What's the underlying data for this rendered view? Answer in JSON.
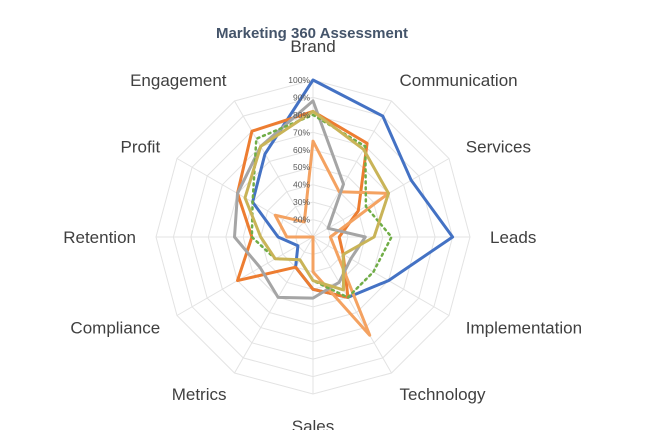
{
  "chart_data": {
    "type": "radar",
    "title": "Marketing 360 Assessment",
    "categories": [
      "Brand",
      "Communication",
      "Services",
      "Leads",
      "Implementation",
      "Technology",
      "Sales",
      "Metrics",
      "Compliance",
      "Retention",
      "Profit",
      "Engagement"
    ],
    "tick_labels": [
      "20%",
      "30%",
      "40%",
      "50%",
      "60%",
      "70%",
      "80%",
      "90%",
      "100%"
    ],
    "rlim": [
      10,
      100
    ],
    "grid": true,
    "legend": "none",
    "series": [
      {
        "values": [
          100,
          90,
          75,
          90,
          60,
          50,
          40,
          30,
          20,
          30,
          50,
          65
        ],
        "color": "#4472c4",
        "style": "solid"
      },
      {
        "values": [
          82,
          72,
          40,
          25,
          30,
          50,
          40,
          30,
          60,
          45,
          60,
          80
        ],
        "color": "#ed7d31",
        "style": "solid"
      },
      {
        "values": [
          65,
          40,
          60,
          20,
          25,
          75,
          30,
          10,
          10,
          25,
          35,
          20
        ],
        "color": "#f4a261",
        "style": "solid"
      },
      {
        "values": [
          88,
          45,
          20,
          40,
          35,
          40,
          45,
          50,
          45,
          55,
          60,
          70
        ],
        "color": "#a5a5a5",
        "style": "solid"
      },
      {
        "values": [
          80,
          70,
          45,
          55,
          50,
          50,
          35,
          25,
          35,
          45,
          50,
          75
        ],
        "color": "#70ad47",
        "style": "dotted"
      },
      {
        "values": [
          82,
          68,
          60,
          45,
          30,
          45,
          35,
          25,
          35,
          40,
          55,
          70
        ],
        "color": "#c9b458",
        "style": "solid"
      }
    ]
  }
}
